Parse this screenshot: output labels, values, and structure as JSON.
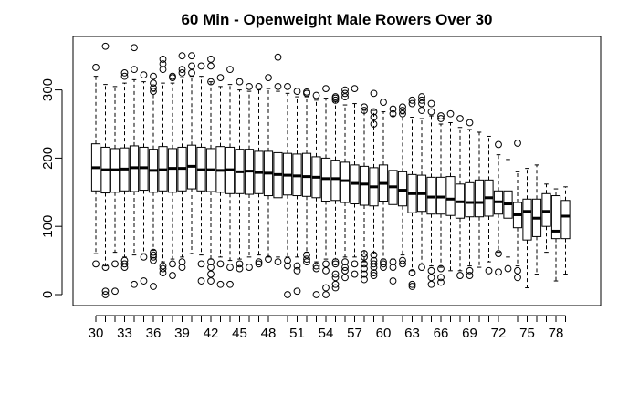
{
  "chart_data": {
    "type": "boxplot",
    "title": "60 Min - Openweight Male Rowers Over 30",
    "xlabel": "",
    "ylabel": "",
    "ylim": [
      -20,
      375
    ],
    "yticks": [
      0,
      100,
      200,
      300
    ],
    "xticks": [
      30,
      33,
      36,
      39,
      42,
      45,
      48,
      51,
      54,
      57,
      60,
      63,
      66,
      69,
      72,
      75,
      78
    ],
    "grid": false,
    "box_color": "#ffffff",
    "line_color": "#000000",
    "boxes": [
      {
        "age": 30,
        "whisker_low": 60,
        "q1": 152,
        "median": 186,
        "q3": 221,
        "whisker_high": 320,
        "outliers": [
          333,
          45
        ]
      },
      {
        "age": 31,
        "whisker_low": 42,
        "q1": 149,
        "median": 183,
        "q3": 216,
        "whisker_high": 308,
        "outliers": [
          364,
          40,
          5,
          0
        ]
      },
      {
        "age": 32,
        "whisker_low": 62,
        "q1": 150,
        "median": 183,
        "q3": 214,
        "whisker_high": 305,
        "outliers": [
          45,
          5
        ]
      },
      {
        "age": 33,
        "whisker_low": 55,
        "q1": 152,
        "median": 184,
        "q3": 215,
        "whisker_high": 310,
        "outliers": [
          325,
          320,
          50,
          45,
          40
        ]
      },
      {
        "age": 34,
        "whisker_low": 58,
        "q1": 151,
        "median": 186,
        "q3": 218,
        "whisker_high": 315,
        "outliers": [
          362,
          330,
          15
        ]
      },
      {
        "age": 35,
        "whisker_low": 60,
        "q1": 153,
        "median": 186,
        "q3": 216,
        "whisker_high": 312,
        "outliers": [
          322,
          55,
          20
        ]
      },
      {
        "age": 36,
        "whisker_low": 65,
        "q1": 150,
        "median": 182,
        "q3": 213,
        "whisker_high": 298,
        "outliers": [
          320,
          310,
          303,
          298,
          62,
          58,
          55,
          50,
          12
        ]
      },
      {
        "age": 37,
        "whisker_low": 48,
        "q1": 152,
        "median": 183,
        "q3": 217,
        "whisker_high": 310,
        "outliers": [
          345,
          338,
          330,
          42,
          38,
          32
        ]
      },
      {
        "age": 38,
        "whisker_low": 52,
        "q1": 150,
        "median": 185,
        "q3": 214,
        "whisker_high": 310,
        "outliers": [
          320,
          318,
          45,
          28
        ]
      },
      {
        "age": 39,
        "whisker_low": 55,
        "q1": 152,
        "median": 185,
        "q3": 216,
        "whisker_high": 318,
        "outliers": [
          350,
          330,
          325,
          48,
          40
        ]
      },
      {
        "age": 40,
        "whisker_low": 60,
        "q1": 155,
        "median": 188,
        "q3": 219,
        "whisker_high": 320,
        "outliers": [
          350,
          335,
          325
        ]
      },
      {
        "age": 41,
        "whisker_low": 58,
        "q1": 152,
        "median": 183,
        "q3": 216,
        "whisker_high": 320,
        "outliers": [
          335,
          45,
          20
        ]
      },
      {
        "age": 42,
        "whisker_low": 52,
        "q1": 151,
        "median": 183,
        "q3": 214,
        "whisker_high": 312,
        "outliers": [
          345,
          335,
          312,
          48,
          40,
          30,
          20
        ]
      },
      {
        "age": 43,
        "whisker_low": 55,
        "q1": 150,
        "median": 182,
        "q3": 217,
        "whisker_high": 305,
        "outliers": [
          318,
          45,
          15
        ]
      },
      {
        "age": 44,
        "whisker_low": 50,
        "q1": 148,
        "median": 183,
        "q3": 216,
        "whisker_high": 308,
        "outliers": [
          330,
          40,
          15
        ]
      },
      {
        "age": 45,
        "whisker_low": 52,
        "q1": 148,
        "median": 180,
        "q3": 213,
        "whisker_high": 300,
        "outliers": [
          312,
          45,
          38
        ]
      },
      {
        "age": 46,
        "whisker_low": 55,
        "q1": 147,
        "median": 181,
        "q3": 213,
        "whisker_high": 298,
        "outliers": [
          305,
          40
        ]
      },
      {
        "age": 47,
        "whisker_low": 58,
        "q1": 148,
        "median": 179,
        "q3": 210,
        "whisker_high": 300,
        "outliers": [
          305,
          48,
          45
        ]
      },
      {
        "age": 48,
        "whisker_low": 55,
        "q1": 145,
        "median": 178,
        "q3": 210,
        "whisker_high": 302,
        "outliers": [
          318,
          52
        ]
      },
      {
        "age": 49,
        "whisker_low": 55,
        "q1": 142,
        "median": 176,
        "q3": 208,
        "whisker_high": 298,
        "outliers": [
          348,
          305,
          48
        ]
      },
      {
        "age": 50,
        "whisker_low": 55,
        "q1": 146,
        "median": 175,
        "q3": 207,
        "whisker_high": 295,
        "outliers": [
          305,
          50,
          42,
          0
        ]
      },
      {
        "age": 51,
        "whisker_low": 55,
        "q1": 145,
        "median": 174,
        "q3": 206,
        "whisker_high": 290,
        "outliers": [
          298,
          42,
          35,
          5
        ]
      },
      {
        "age": 52,
        "whisker_low": 62,
        "q1": 144,
        "median": 173,
        "q3": 207,
        "whisker_high": 290,
        "outliers": [
          297,
          295,
          58,
          52,
          48
        ]
      },
      {
        "age": 53,
        "whisker_low": 48,
        "q1": 142,
        "median": 172,
        "q3": 202,
        "whisker_high": 285,
        "outliers": [
          292,
          42,
          38,
          0
        ]
      },
      {
        "age": 54,
        "whisker_low": 52,
        "q1": 137,
        "median": 170,
        "q3": 200,
        "whisker_high": 288,
        "outliers": [
          302,
          45,
          35,
          10,
          0
        ]
      },
      {
        "age": 55,
        "whisker_low": 52,
        "q1": 138,
        "median": 170,
        "q3": 197,
        "whisker_high": 283,
        "outliers": [
          290,
          288,
          285,
          48,
          45,
          30,
          25,
          15,
          10
        ]
      },
      {
        "age": 56,
        "whisker_low": 55,
        "q1": 135,
        "median": 167,
        "q3": 194,
        "whisker_high": 278,
        "outliers": [
          300,
          295,
          290,
          48,
          40,
          35,
          25
        ]
      },
      {
        "age": 57,
        "whisker_low": 55,
        "q1": 133,
        "median": 163,
        "q3": 190,
        "whisker_high": 280,
        "outliers": [
          302,
          45,
          30
        ]
      },
      {
        "age": 58,
        "whisker_low": 48,
        "q1": 131,
        "median": 162,
        "q3": 188,
        "whisker_high": 270,
        "outliers": [
          275,
          270,
          60,
          55,
          45,
          38,
          30,
          22
        ]
      },
      {
        "age": 59,
        "whisker_low": 60,
        "q1": 130,
        "median": 158,
        "q3": 186,
        "whisker_high": 270,
        "outliers": [
          295,
          268,
          260,
          250,
          58,
          50,
          45,
          40,
          32,
          28
        ]
      },
      {
        "age": 60,
        "whisker_low": 52,
        "q1": 137,
        "median": 163,
        "q3": 190,
        "whisker_high": 268,
        "outliers": [
          282,
          48,
          45,
          40
        ]
      },
      {
        "age": 61,
        "whisker_low": 52,
        "q1": 132,
        "median": 158,
        "q3": 182,
        "whisker_high": 262,
        "outliers": [
          272,
          265,
          48,
          40,
          20
        ]
      },
      {
        "age": 62,
        "whisker_low": 58,
        "q1": 130,
        "median": 153,
        "q3": 180,
        "whisker_high": 265,
        "outliers": [
          275,
          270,
          265,
          50,
          45
        ]
      },
      {
        "age": 63,
        "whisker_low": 35,
        "q1": 120,
        "median": 148,
        "q3": 176,
        "whisker_high": 260,
        "outliers": [
          285,
          280,
          32,
          15,
          12
        ]
      },
      {
        "age": 64,
        "whisker_low": 45,
        "q1": 122,
        "median": 148,
        "q3": 175,
        "whisker_high": 258,
        "outliers": [
          290,
          285,
          280,
          270,
          40
        ]
      },
      {
        "age": 65,
        "whisker_low": 42,
        "q1": 118,
        "median": 143,
        "q3": 172,
        "whisker_high": 262,
        "outliers": [
          280,
          268,
          35,
          25,
          15
        ]
      },
      {
        "age": 66,
        "whisker_low": 40,
        "q1": 118,
        "median": 143,
        "q3": 172,
        "whisker_high": 250,
        "outliers": [
          262,
          258,
          38,
          25,
          18
        ]
      },
      {
        "age": 67,
        "whisker_low": 35,
        "q1": 116,
        "median": 140,
        "q3": 173,
        "whisker_high": 252,
        "outliers": [
          265
        ]
      },
      {
        "age": 68,
        "whisker_low": 35,
        "q1": 112,
        "median": 136,
        "q3": 162,
        "whisker_high": 245,
        "outliers": [
          258,
          28
        ]
      },
      {
        "age": 69,
        "whisker_low": 42,
        "q1": 114,
        "median": 135,
        "q3": 164,
        "whisker_high": 242,
        "outliers": [
          252,
          35,
          28
        ]
      },
      {
        "age": 70,
        "whisker_low": 40,
        "q1": 114,
        "median": 135,
        "q3": 168,
        "whisker_high": 238,
        "outliers": []
      },
      {
        "age": 71,
        "whisker_low": 48,
        "q1": 115,
        "median": 142,
        "q3": 168,
        "whisker_high": 232,
        "outliers": [
          35
        ]
      },
      {
        "age": 72,
        "whisker_low": 62,
        "q1": 118,
        "median": 136,
        "q3": 152,
        "whisker_high": 205,
        "outliers": [
          220,
          60,
          33
        ]
      },
      {
        "age": 73,
        "whisker_low": 55,
        "q1": 112,
        "median": 133,
        "q3": 152,
        "whisker_high": 198,
        "outliers": [
          38
        ]
      },
      {
        "age": 74,
        "whisker_low": 42,
        "q1": 98,
        "median": 117,
        "q3": 135,
        "whisker_high": 180,
        "outliers": [
          222,
          35,
          25
        ]
      },
      {
        "age": 75,
        "whisker_low": 10,
        "q1": 80,
        "median": 122,
        "q3": 140,
        "whisker_high": 185,
        "outliers": []
      },
      {
        "age": 76,
        "whisker_low": 30,
        "q1": 85,
        "median": 112,
        "q3": 140,
        "whisker_high": 190,
        "outliers": []
      },
      {
        "age": 77,
        "whisker_low": 62,
        "q1": 100,
        "median": 122,
        "q3": 148,
        "whisker_high": 162,
        "outliers": []
      },
      {
        "age": 78,
        "whisker_low": 20,
        "q1": 82,
        "median": 93,
        "q3": 145,
        "whisker_high": 155,
        "outliers": []
      },
      {
        "age": 79,
        "whisker_low": 30,
        "q1": 82,
        "median": 115,
        "q3": 138,
        "whisker_high": 158,
        "outliers": []
      }
    ]
  }
}
